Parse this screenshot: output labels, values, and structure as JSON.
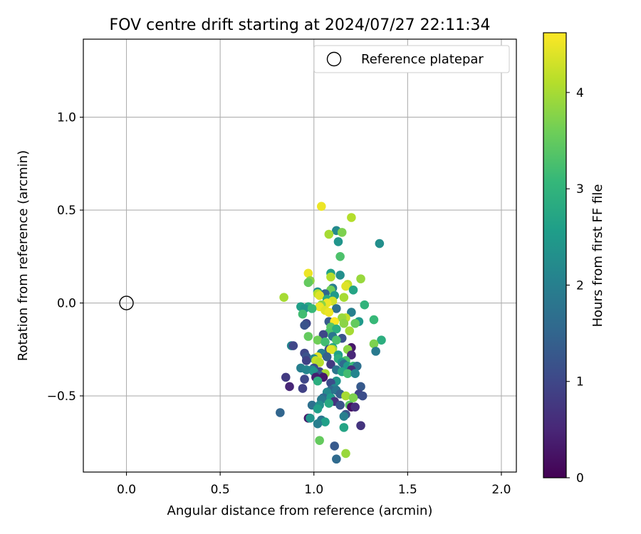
{
  "chart_data": {
    "type": "scatter",
    "title": "FOV centre drift starting at 2024/07/27 22:11:34",
    "xlabel": "Angular distance from reference (arcmin)",
    "ylabel": "Rotation from reference (arcmin)",
    "xlim": [
      -0.23,
      2.08
    ],
    "ylim": [
      -0.91,
      1.42
    ],
    "xticks": [
      0.0,
      0.5,
      1.0,
      1.5,
      2.0
    ],
    "xtick_labels": [
      "0.0",
      "0.5",
      "1.0",
      "1.5",
      "2.0"
    ],
    "yticks": [
      -0.5,
      0.0,
      0.5,
      1.0
    ],
    "ytick_labels": [
      "−0.5",
      "0.0",
      "0.5",
      "1.0"
    ],
    "grid": true,
    "legend": {
      "position": "top-right",
      "entries": [
        "Reference platepar"
      ]
    },
    "reference_point": {
      "x": 0.0,
      "y": 0.0,
      "marker": "hollow-circle",
      "edge_color": "#000000"
    },
    "colorbar": {
      "label": "Hours from first FF file",
      "range": [
        0,
        4.62
      ],
      "ticks": [
        0,
        1,
        2,
        3,
        4
      ],
      "tick_labels": [
        "0",
        "1",
        "2",
        "3",
        "4"
      ],
      "colormap": "viridis"
    },
    "colormap_stops": [
      "#440154",
      "#482878",
      "#3e4989",
      "#31688e",
      "#26828e",
      "#1f9e89",
      "#35b779",
      "#6ece58",
      "#b5de2b",
      "#fde725"
    ],
    "series": [
      {
        "color_by": "hours",
        "points": [
          {
            "x": 1.04,
            "y": 0.52,
            "c": 4.5
          },
          {
            "x": 1.2,
            "y": 0.46,
            "c": 4.1
          },
          {
            "x": 1.12,
            "y": 0.39,
            "c": 2.2
          },
          {
            "x": 1.15,
            "y": 0.38,
            "c": 3.7
          },
          {
            "x": 1.08,
            "y": 0.37,
            "c": 4.0
          },
          {
            "x": 1.13,
            "y": 0.33,
            "c": 2.4
          },
          {
            "x": 1.35,
            "y": 0.32,
            "c": 2.3
          },
          {
            "x": 1.14,
            "y": 0.25,
            "c": 3.3
          },
          {
            "x": 0.97,
            "y": 0.16,
            "c": 4.5
          },
          {
            "x": 1.09,
            "y": 0.16,
            "c": 2.6
          },
          {
            "x": 1.14,
            "y": 0.15,
            "c": 2.3
          },
          {
            "x": 1.09,
            "y": 0.14,
            "c": 4.1
          },
          {
            "x": 1.25,
            "y": 0.13,
            "c": 3.9
          },
          {
            "x": 0.98,
            "y": 0.12,
            "c": 3.8
          },
          {
            "x": 0.97,
            "y": 0.11,
            "c": 3.5
          },
          {
            "x": 1.18,
            "y": 0.1,
            "c": 4.2
          },
          {
            "x": 1.17,
            "y": 0.09,
            "c": 4.4
          },
          {
            "x": 1.1,
            "y": 0.08,
            "c": 2.0
          },
          {
            "x": 1.09,
            "y": 0.07,
            "c": 3.6
          },
          {
            "x": 1.21,
            "y": 0.07,
            "c": 2.7
          },
          {
            "x": 1.02,
            "y": 0.06,
            "c": 2.4
          },
          {
            "x": 1.06,
            "y": 0.05,
            "c": 1.5
          },
          {
            "x": 1.02,
            "y": 0.05,
            "c": 4.1
          },
          {
            "x": 1.03,
            "y": 0.04,
            "c": 4.4
          },
          {
            "x": 1.11,
            "y": 0.04,
            "c": 2.5
          },
          {
            "x": 0.84,
            "y": 0.03,
            "c": 4.0
          },
          {
            "x": 1.16,
            "y": 0.03,
            "c": 4.0
          },
          {
            "x": 1.07,
            "y": 0.02,
            "c": 2.8
          },
          {
            "x": 1.1,
            "y": 0.01,
            "c": 4.3
          },
          {
            "x": 1.07,
            "y": 0.0,
            "c": 4.5
          },
          {
            "x": 1.04,
            "y": -0.01,
            "c": 3.8
          },
          {
            "x": 1.27,
            "y": -0.01,
            "c": 3.0
          },
          {
            "x": 0.93,
            "y": -0.02,
            "c": 2.6
          },
          {
            "x": 0.97,
            "y": -0.02,
            "c": 2.8
          },
          {
            "x": 1.03,
            "y": -0.02,
            "c": 4.5
          },
          {
            "x": 0.95,
            "y": -0.03,
            "c": 2.4
          },
          {
            "x": 0.99,
            "y": -0.03,
            "c": 3.1
          },
          {
            "x": 1.12,
            "y": -0.03,
            "c": 1.7
          },
          {
            "x": 1.06,
            "y": -0.04,
            "c": 4.4
          },
          {
            "x": 1.08,
            "y": -0.05,
            "c": 4.5
          },
          {
            "x": 1.2,
            "y": -0.05,
            "c": 2.0
          },
          {
            "x": 0.94,
            "y": -0.06,
            "c": 3.2
          },
          {
            "x": 1.17,
            "y": -0.08,
            "c": 4.2
          },
          {
            "x": 1.15,
            "y": -0.08,
            "c": 3.9
          },
          {
            "x": 1.32,
            "y": -0.09,
            "c": 3.1
          },
          {
            "x": 1.08,
            "y": -0.1,
            "c": 1.3
          },
          {
            "x": 1.11,
            "y": -0.1,
            "c": 4.6
          },
          {
            "x": 1.24,
            "y": -0.1,
            "c": 2.5
          },
          {
            "x": 1.22,
            "y": -0.11,
            "c": 3.5
          },
          {
            "x": 1.16,
            "y": -0.11,
            "c": 3.8
          },
          {
            "x": 0.96,
            "y": -0.11,
            "c": 1.0
          },
          {
            "x": 0.95,
            "y": -0.12,
            "c": 1.2
          },
          {
            "x": 1.09,
            "y": -0.13,
            "c": 3.4
          },
          {
            "x": 1.12,
            "y": -0.14,
            "c": 2.9
          },
          {
            "x": 1.19,
            "y": -0.15,
            "c": 4.0
          },
          {
            "x": 1.08,
            "y": -0.16,
            "c": 3.3
          },
          {
            "x": 1.05,
            "y": -0.17,
            "c": 1.0
          },
          {
            "x": 0.97,
            "y": -0.18,
            "c": 3.5
          },
          {
            "x": 1.1,
            "y": -0.18,
            "c": 1.8
          },
          {
            "x": 1.15,
            "y": -0.19,
            "c": 1.2
          },
          {
            "x": 1.36,
            "y": -0.2,
            "c": 2.9
          },
          {
            "x": 1.12,
            "y": -0.2,
            "c": 3.3
          },
          {
            "x": 1.02,
            "y": -0.2,
            "c": 3.6
          },
          {
            "x": 1.06,
            "y": -0.21,
            "c": 3.2
          },
          {
            "x": 1.32,
            "y": -0.22,
            "c": 3.7
          },
          {
            "x": 0.88,
            "y": -0.23,
            "c": 2.1
          },
          {
            "x": 0.89,
            "y": -0.23,
            "c": 1.0
          },
          {
            "x": 1.1,
            "y": -0.24,
            "c": 2.7
          },
          {
            "x": 1.2,
            "y": -0.24,
            "c": 0.3
          },
          {
            "x": 1.08,
            "y": -0.25,
            "c": 1.2
          },
          {
            "x": 1.1,
            "y": -0.25,
            "c": 4.0
          },
          {
            "x": 1.09,
            "y": -0.25,
            "c": 4.4
          },
          {
            "x": 1.18,
            "y": -0.25,
            "c": 3.8
          },
          {
            "x": 1.33,
            "y": -0.26,
            "c": 1.9
          },
          {
            "x": 1.04,
            "y": -0.27,
            "c": 2.0
          },
          {
            "x": 0.95,
            "y": -0.27,
            "c": 1.0
          },
          {
            "x": 1.13,
            "y": -0.28,
            "c": 2.6
          },
          {
            "x": 1.2,
            "y": -0.28,
            "c": 0.5
          },
          {
            "x": 0.96,
            "y": -0.29,
            "c": 1.2
          },
          {
            "x": 1.07,
            "y": -0.29,
            "c": 1.4
          },
          {
            "x": 1.02,
            "y": -0.29,
            "c": 4.4
          },
          {
            "x": 1.13,
            "y": -0.3,
            "c": 2.9
          },
          {
            "x": 1.0,
            "y": -0.3,
            "c": 2.2
          },
          {
            "x": 1.17,
            "y": -0.31,
            "c": 3.3
          },
          {
            "x": 0.96,
            "y": -0.31,
            "c": 0.9
          },
          {
            "x": 1.01,
            "y": -0.31,
            "c": 4.2
          },
          {
            "x": 1.15,
            "y": -0.32,
            "c": 2.4
          },
          {
            "x": 1.03,
            "y": -0.32,
            "c": 4.1
          },
          {
            "x": 1.16,
            "y": -0.33,
            "c": 1.6
          },
          {
            "x": 1.09,
            "y": -0.33,
            "c": 0.8
          },
          {
            "x": 1.18,
            "y": -0.34,
            "c": 2.5
          },
          {
            "x": 1.21,
            "y": -0.34,
            "c": 3.1
          },
          {
            "x": 1.23,
            "y": -0.34,
            "c": 1.7
          },
          {
            "x": 0.93,
            "y": -0.35,
            "c": 2.0
          },
          {
            "x": 1.0,
            "y": -0.35,
            "c": 1.1
          },
          {
            "x": 0.99,
            "y": -0.36,
            "c": 2.2
          },
          {
            "x": 0.96,
            "y": -0.36,
            "c": 2.1
          },
          {
            "x": 1.12,
            "y": -0.36,
            "c": 1.8
          },
          {
            "x": 1.2,
            "y": -0.36,
            "c": 0.6
          },
          {
            "x": 1.03,
            "y": -0.37,
            "c": 1.0
          },
          {
            "x": 1.15,
            "y": -0.37,
            "c": 2.7
          },
          {
            "x": 1.0,
            "y": -0.37,
            "c": 2.4
          },
          {
            "x": 1.18,
            "y": -0.38,
            "c": 3.2
          },
          {
            "x": 1.22,
            "y": -0.38,
            "c": 2.1
          },
          {
            "x": 1.06,
            "y": -0.38,
            "c": 4.0
          },
          {
            "x": 1.03,
            "y": -0.39,
            "c": 1.3
          },
          {
            "x": 1.05,
            "y": -0.4,
            "c": 0.3
          },
          {
            "x": 1.01,
            "y": -0.4,
            "c": 0.4
          },
          {
            "x": 0.85,
            "y": -0.4,
            "c": 0.8
          },
          {
            "x": 0.95,
            "y": -0.41,
            "c": 1.0
          },
          {
            "x": 1.12,
            "y": -0.42,
            "c": 2.4
          },
          {
            "x": 1.02,
            "y": -0.42,
            "c": 2.9
          },
          {
            "x": 1.09,
            "y": -0.43,
            "c": 1.1
          },
          {
            "x": 1.25,
            "y": -0.45,
            "c": 1.3
          },
          {
            "x": 0.87,
            "y": -0.45,
            "c": 0.5
          },
          {
            "x": 0.94,
            "y": -0.46,
            "c": 0.9
          },
          {
            "x": 1.11,
            "y": -0.46,
            "c": 2.1
          },
          {
            "x": 1.09,
            "y": -0.47,
            "c": 1.5
          },
          {
            "x": 1.12,
            "y": -0.47,
            "c": 1.8
          },
          {
            "x": 1.07,
            "y": -0.48,
            "c": 2.2
          },
          {
            "x": 1.14,
            "y": -0.49,
            "c": 1.4
          },
          {
            "x": 1.24,
            "y": -0.49,
            "c": 0.9
          },
          {
            "x": 1.26,
            "y": -0.5,
            "c": 1.1
          },
          {
            "x": 1.17,
            "y": -0.5,
            "c": 4.0
          },
          {
            "x": 1.05,
            "y": -0.51,
            "c": 1.6
          },
          {
            "x": 1.09,
            "y": -0.51,
            "c": 2.5
          },
          {
            "x": 1.21,
            "y": -0.51,
            "c": 3.7
          },
          {
            "x": 1.04,
            "y": -0.52,
            "c": 1.9
          },
          {
            "x": 1.11,
            "y": -0.53,
            "c": 0.7
          },
          {
            "x": 1.08,
            "y": -0.54,
            "c": 2.8
          },
          {
            "x": 1.14,
            "y": -0.55,
            "c": 1.2
          },
          {
            "x": 1.19,
            "y": -0.55,
            "c": 3.4
          },
          {
            "x": 0.99,
            "y": -0.55,
            "c": 1.7
          },
          {
            "x": 1.03,
            "y": -0.55,
            "c": 2.3
          },
          {
            "x": 1.2,
            "y": -0.56,
            "c": 0.2
          },
          {
            "x": 1.22,
            "y": -0.56,
            "c": 0.6
          },
          {
            "x": 1.02,
            "y": -0.57,
            "c": 2.6
          },
          {
            "x": 0.82,
            "y": -0.59,
            "c": 1.5
          },
          {
            "x": 1.17,
            "y": -0.6,
            "c": 1.2
          },
          {
            "x": 1.16,
            "y": -0.61,
            "c": 2.0
          },
          {
            "x": 0.97,
            "y": -0.62,
            "c": 0.3
          },
          {
            "x": 0.98,
            "y": -0.62,
            "c": 2.4
          },
          {
            "x": 1.04,
            "y": -0.63,
            "c": 1.8
          },
          {
            "x": 1.06,
            "y": -0.64,
            "c": 2.6
          },
          {
            "x": 1.02,
            "y": -0.65,
            "c": 2.0
          },
          {
            "x": 1.25,
            "y": -0.66,
            "c": 0.7
          },
          {
            "x": 1.16,
            "y": -0.67,
            "c": 2.7
          },
          {
            "x": 1.03,
            "y": -0.74,
            "c": 3.5
          },
          {
            "x": 1.11,
            "y": -0.77,
            "c": 1.3
          },
          {
            "x": 1.17,
            "y": -0.81,
            "c": 3.9
          },
          {
            "x": 1.12,
            "y": -0.84,
            "c": 1.6
          }
        ]
      }
    ]
  }
}
